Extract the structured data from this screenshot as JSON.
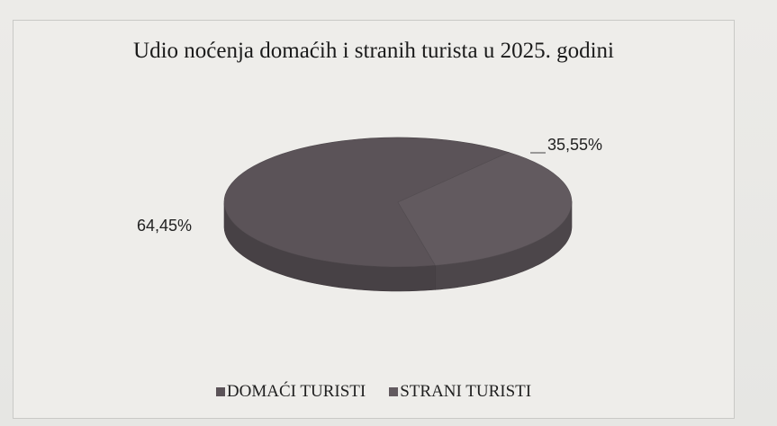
{
  "chart_data": {
    "type": "pie",
    "title": "Udio noćenja domaćih i stranih turista u 2025. godini",
    "slices": [
      {
        "name": "DOMAĆI TURISTI",
        "value": 64.45,
        "label": "64,45%",
        "color": "#5b5358"
      },
      {
        "name": "STRANI TURISTI",
        "value": 35.55,
        "label": "35,55%",
        "color": "#625a5f"
      }
    ],
    "legend_position": "bottom"
  }
}
